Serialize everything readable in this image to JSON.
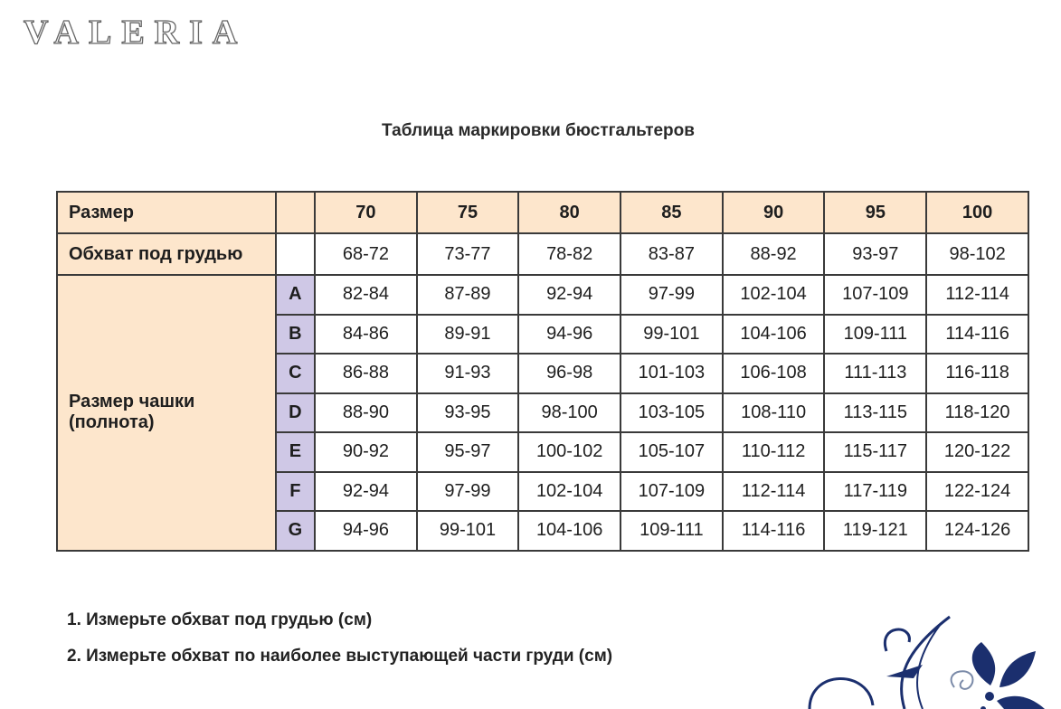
{
  "logo": "VALERIA",
  "title": "Таблица маркировки бюстгальтеров",
  "table": {
    "header_label": "Размер",
    "sizes": [
      "70",
      "75",
      "80",
      "85",
      "90",
      "95",
      "100"
    ],
    "girth_label": "Обхват под грудью",
    "girth": [
      "68-72",
      "73-77",
      "78-82",
      "83-87",
      "88-92",
      "93-97",
      "98-102"
    ],
    "cup_label_1": "Размер чашки",
    "cup_label_2": "(полнота)",
    "cups": [
      {
        "letter": "A",
        "values": [
          "82-84",
          "87-89",
          "92-94",
          "97-99",
          "102-104",
          "107-109",
          "112-114"
        ]
      },
      {
        "letter": "B",
        "values": [
          "84-86",
          "89-91",
          "94-96",
          "99-101",
          "104-106",
          "109-111",
          "114-116"
        ]
      },
      {
        "letter": "C",
        "values": [
          "86-88",
          "91-93",
          "96-98",
          "101-103",
          "106-108",
          "111-113",
          "116-118"
        ]
      },
      {
        "letter": "D",
        "values": [
          "88-90",
          "93-95",
          "98-100",
          "103-105",
          "108-110",
          "113-115",
          "118-120"
        ]
      },
      {
        "letter": "E",
        "values": [
          "90-92",
          "95-97",
          "100-102",
          "105-107",
          "110-112",
          "115-117",
          "120-122"
        ]
      },
      {
        "letter": "F",
        "values": [
          "92-94",
          "97-99",
          "102-104",
          "107-109",
          "112-114",
          "117-119",
          "122-124"
        ]
      },
      {
        "letter": "G",
        "values": [
          "94-96",
          "99-101",
          "104-106",
          "109-111",
          "114-116",
          "119-121",
          "124-126"
        ]
      }
    ]
  },
  "steps": [
    "1. Измерьте обхват под грудью (см)",
    "2. Измерьте обхват по наиболее выступающей части груди (см)"
  ],
  "colors": {
    "header_bg": "#fde6cc",
    "cup_letter_bg": "#cfc8e6",
    "ornament": "#1b2f6e"
  }
}
